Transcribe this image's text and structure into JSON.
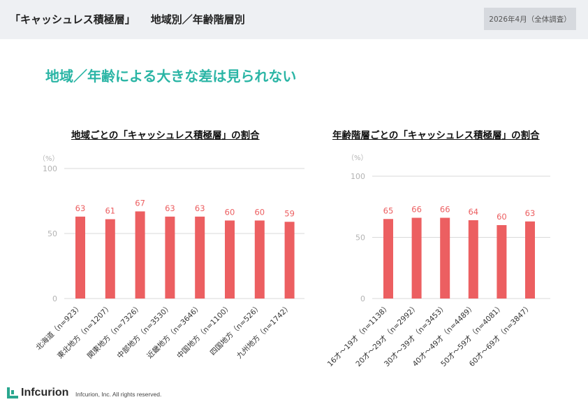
{
  "header": {
    "title": "「キャッシュレス積極層」",
    "subtitle": "地域別／年齢階層別",
    "date_badge": "2026年4月（全体調査）"
  },
  "headline": "地域／年齢による大きな差は見られない",
  "footer": {
    "logo": "Infcurion",
    "copyright": "Infcurion, Inc.  All rights reserved."
  },
  "colors": {
    "bar": "#ec5f61",
    "label": "#ec5f61",
    "headline": "#2ab5a5",
    "grid": "#d9d9d9",
    "axis_text": "#b3b3b3"
  },
  "chart_data": [
    {
      "type": "bar",
      "title": "地域ごとの「キャッシュレス積極層」の割合",
      "ylabel": "（%）",
      "ylim": [
        0,
        100
      ],
      "yticks": [
        0,
        50,
        100
      ],
      "grid": true,
      "categories": [
        "北海道（n=923）",
        "東北地方（n=1207）",
        "関東地方（n=7326）",
        "中部地方（n=3530）",
        "近畿地方（n=3646）",
        "中国地方（n=1100）",
        "四国地方（n=526）",
        "九州地方（n=1742）"
      ],
      "values": [
        63,
        61,
        67,
        63,
        63,
        60,
        60,
        59
      ]
    },
    {
      "type": "bar",
      "title": "年齢階層ごとの「キャッシュレス積極層」の割合",
      "ylabel": "（%）",
      "ylim": [
        0,
        100
      ],
      "yticks": [
        0,
        50,
        100
      ],
      "grid": true,
      "categories": [
        "16才～19才（n=1138）",
        "20才～29才（n=2992）",
        "30才～39才（n=3453）",
        "40才～49才（n=4489）",
        "50才～59才（n=4081）",
        "60才～69才（n=3847）"
      ],
      "values": [
        65,
        66,
        66,
        64,
        60,
        63
      ]
    }
  ]
}
